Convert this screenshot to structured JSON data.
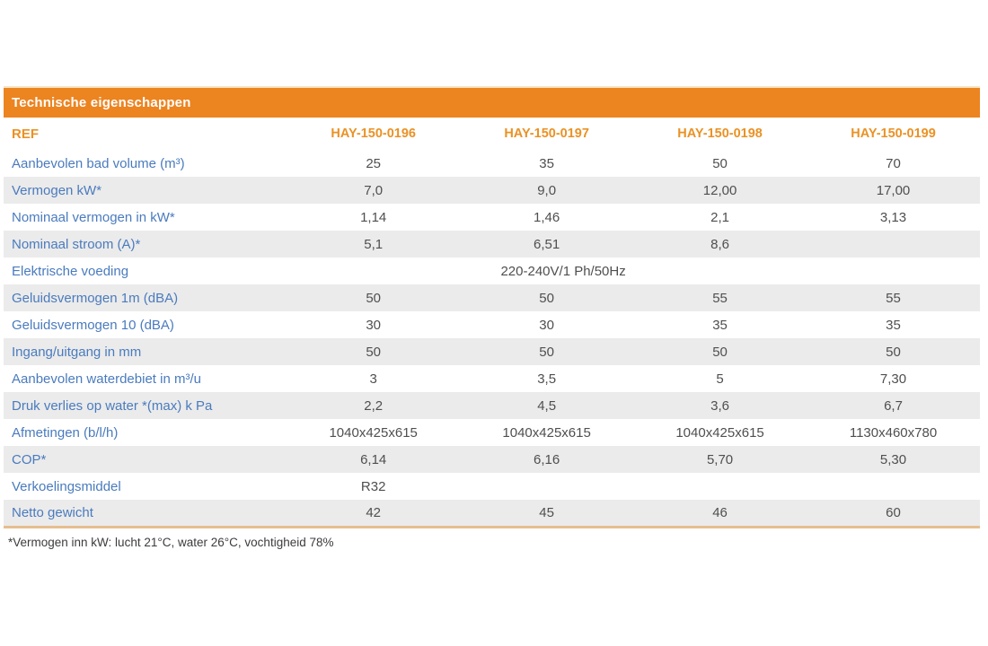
{
  "table": {
    "title": "Technische eigenschappen",
    "ref_label": "REF",
    "columns": [
      "HAY-150-0196",
      "HAY-150-0197",
      "HAY-150-0198",
      "HAY-150-0199"
    ],
    "rows": [
      {
        "label": "Aanbevolen bad volume (m³)",
        "values": [
          "25",
          "35",
          "50",
          "70"
        ]
      },
      {
        "label": "Vermogen kW*",
        "values": [
          "7,0",
          "9,0",
          "12,00",
          "17,00"
        ]
      },
      {
        "label": "Nominaal vermogen in kW*",
        "values": [
          "1,14",
          "1,46",
          "2,1",
          "3,13"
        ]
      },
      {
        "label": "Nominaal stroom (A)*",
        "values": [
          "5,1",
          "6,51",
          "8,6",
          ""
        ]
      },
      {
        "label": "Elektrische voeding",
        "span_value": "220-240V/1 Ph/50Hz"
      },
      {
        "label": "Geluidsvermogen 1m (dBA)",
        "values": [
          "50",
          "50",
          "55",
          "55"
        ]
      },
      {
        "label": "Geluidsvermogen 10 (dBA)",
        "values": [
          "30",
          "30",
          "35",
          "35"
        ]
      },
      {
        "label": "Ingang/uitgang in mm",
        "values": [
          "50",
          "50",
          "50",
          "50"
        ]
      },
      {
        "label": "Aanbevolen waterdebiet in m³/u",
        "values": [
          "3",
          "3,5",
          "5",
          "7,30"
        ]
      },
      {
        "label": "Druk verlies op water *(max) k Pa",
        "values": [
          "2,2",
          "4,5",
          "3,6",
          "6,7"
        ]
      },
      {
        "label": "Afmetingen (b/l/h)",
        "values": [
          "1040x425x615",
          "1040x425x615",
          "1040x425x615",
          "1130x460x780"
        ]
      },
      {
        "label": "COP*",
        "values": [
          "6,14",
          "6,16",
          "5,70",
          "5,30"
        ]
      },
      {
        "label": "Verkoelingsmiddel",
        "values": [
          "R32",
          "",
          "",
          ""
        ]
      },
      {
        "label": "Netto gewicht",
        "values": [
          "42",
          "45",
          "46",
          "60"
        ]
      }
    ],
    "footnote": "*Vermogen inn kW: lucht 21°C, water 26°C, vochtigheid 78%"
  },
  "colors": {
    "header_orange": "#EC8420",
    "ref_orange": "#EA9225",
    "label_blue": "#4A7BBE",
    "value_gray": "#4F4F4F",
    "stripe_gray": "#EBEBEB",
    "bottom_border_tan": "#E6BE8F"
  }
}
